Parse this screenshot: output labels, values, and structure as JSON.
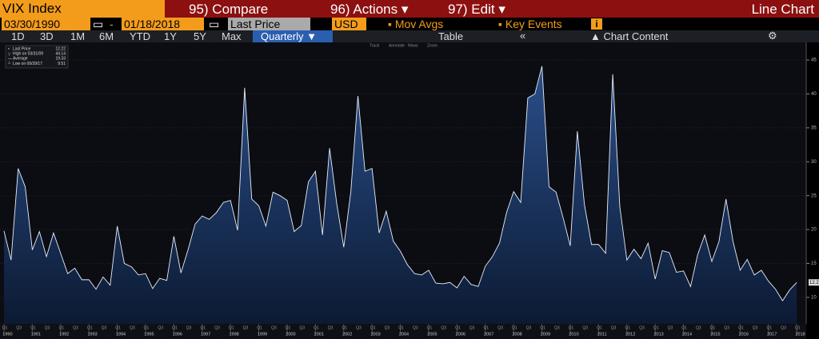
{
  "toolbar": {
    "ticker": "VIX Index",
    "compare": "95) Compare",
    "actions": "96) Actions",
    "edit": "97) Edit",
    "chart_type": "Line Chart",
    "start_date": "03/30/1990",
    "dash": "-",
    "end_date": "01/18/2018",
    "field": "Last Price",
    "currency": "USD",
    "mov_avgs": "Mov Avgs",
    "key_events": "Key Events",
    "ranges": [
      "1D",
      "3D",
      "1M",
      "6M",
      "YTD",
      "1Y",
      "5Y",
      "Max"
    ],
    "period": "Quarterly",
    "table": "Table",
    "chart_content": "Chart Content",
    "tools": [
      "Track",
      "Annotate",
      "News",
      "Zoom"
    ]
  },
  "chart_data": {
    "type": "area",
    "stats": [
      {
        "label": "Last Price",
        "value": "12.22"
      },
      {
        "label": "High on 03/31/09",
        "value": "44.14"
      },
      {
        "label": "Average",
        "value": "19.33"
      },
      {
        "label": "Low on 09/29/17",
        "value": "9.51"
      }
    ],
    "years": [
      "1990",
      "1991",
      "1992",
      "1993",
      "1994",
      "1995",
      "1996",
      "1997",
      "1998",
      "1999",
      "2000",
      "2001",
      "2002",
      "2003",
      "2004",
      "2005",
      "2006",
      "2007",
      "2008",
      "2009",
      "2010",
      "2011",
      "2012",
      "2013",
      "2014",
      "2015",
      "2016",
      "2017",
      "2018"
    ],
    "quarter_labels": [
      "Q1",
      "Q3"
    ],
    "values": [
      19.8,
      15.5,
      29,
      26.3,
      17,
      19.7,
      16,
      19.5,
      16.5,
      13.5,
      14.3,
      12.6,
      12.6,
      11.2,
      13,
      11.8,
      20.5,
      15,
      14.5,
      13.3,
      13.5,
      11.3,
      12.8,
      12.5,
      19,
      13.6,
      17,
      20.8,
      22,
      21.5,
      22.5,
      24,
      24.3,
      19.9,
      40.9,
      24.5,
      23.5,
      20.5,
      25.5,
      25,
      24.3,
      19.7,
      20.6,
      27,
      28.6,
      19.2,
      32,
      23.9,
      17.4,
      25.6,
      39.7,
      28.6,
      29,
      19.5,
      22.7,
      18.3,
      16.8,
      14.8,
      13.5,
      13.3,
      14,
      12.1,
      12,
      12.2,
      11.4,
      13.1,
      11.9,
      11.6,
      14.6,
      16,
      18,
      22.5,
      25.6,
      24,
      39.4,
      40,
      44.1,
      26.3,
      25.5,
      21.7,
      17.6,
      34.5,
      23.7,
      17.8,
      17.8,
      16.5,
      42.9,
      23.4,
      15.5,
      17.1,
      15.7,
      18,
      12.7,
      16.9,
      16.6,
      13.7,
      13.9,
      11.6,
      16.3,
      19.2,
      15.3,
      18.2,
      24.5,
      18.2,
      14,
      15.6,
      13.3,
      14,
      12.4,
      11.2,
      9.5,
      11.1,
      12.2
    ],
    "ylim": [
      6.1,
      47.6
    ],
    "yticks": [
      10,
      15,
      20,
      25,
      30,
      35,
      40,
      45
    ],
    "grid": true,
    "color": "#e8eefa",
    "fill": "#1f3f72"
  }
}
